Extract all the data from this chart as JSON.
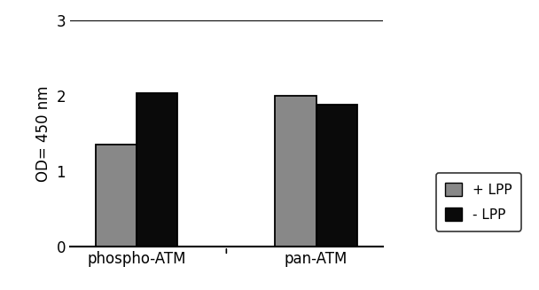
{
  "categories": [
    "phospho-ATM",
    "pan-ATM"
  ],
  "plus_lpp": [
    1.35,
    2.0
  ],
  "minus_lpp": [
    2.03,
    1.88
  ],
  "bar_color_plus": "#888888",
  "bar_color_minus": "#0a0a0a",
  "ylabel": "OD= 450 nm",
  "ylim": [
    0,
    3
  ],
  "yticks": [
    0,
    1,
    2,
    3
  ],
  "legend_labels": [
    "+ LPP",
    "- LPP"
  ],
  "bar_width": 0.32,
  "background_color": "#ffffff",
  "edge_color": "#000000",
  "group_centers": [
    1.0,
    2.4
  ],
  "figsize": [
    6.08,
    3.27
  ],
  "dpi": 100
}
